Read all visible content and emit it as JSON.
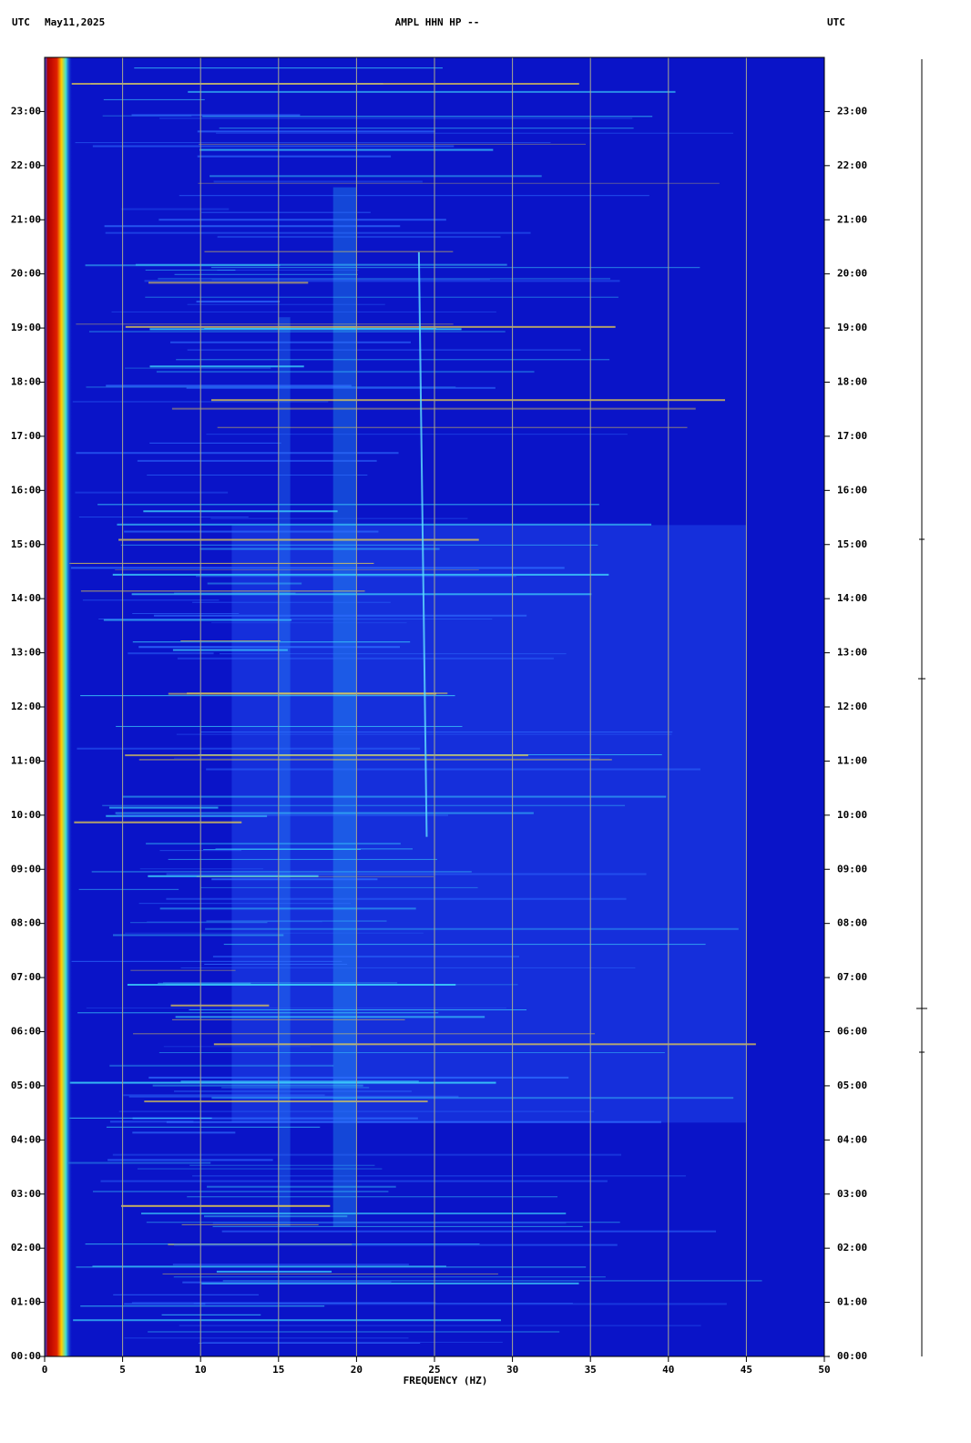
{
  "chart_data": {
    "type": "spectrogram",
    "title": "AMPL HHN HP --",
    "timezone_left": "UTC",
    "date": "May11,2025",
    "timezone_right": "UTC",
    "xlabel": "FREQUENCY (HZ)",
    "xlim": [
      0,
      50
    ],
    "xticks": [
      0,
      5,
      10,
      15,
      20,
      25,
      30,
      35,
      40,
      45,
      50
    ],
    "ylim": [
      0,
      24
    ],
    "yticks": [
      {
        "value": 0,
        "label": "00:00"
      },
      {
        "value": 1,
        "label": "01:00"
      },
      {
        "value": 2,
        "label": "02:00"
      },
      {
        "value": 3,
        "label": "03:00"
      },
      {
        "value": 4,
        "label": "04:00"
      },
      {
        "value": 5,
        "label": "05:00"
      },
      {
        "value": 6,
        "label": "06:00"
      },
      {
        "value": 7,
        "label": "07:00"
      },
      {
        "value": 8,
        "label": "08:00"
      },
      {
        "value": 9,
        "label": "09:00"
      },
      {
        "value": 10,
        "label": "10:00"
      },
      {
        "value": 11,
        "label": "11:00"
      },
      {
        "value": 12,
        "label": "12:00"
      },
      {
        "value": 13,
        "label": "13:00"
      },
      {
        "value": 14,
        "label": "14:00"
      },
      {
        "value": 15,
        "label": "15:00"
      },
      {
        "value": 16,
        "label": "16:00"
      },
      {
        "value": 17,
        "label": "17:00"
      },
      {
        "value": 18,
        "label": "18:00"
      },
      {
        "value": 19,
        "label": "19:00"
      },
      {
        "value": 20,
        "label": "20:00"
      },
      {
        "value": 21,
        "label": "21:00"
      },
      {
        "value": 22,
        "label": "22:00"
      },
      {
        "value": 23,
        "label": "23:00"
      }
    ],
    "grid": true,
    "grid_color": "#a8a890",
    "background_color": "#0a14c8"
  }
}
